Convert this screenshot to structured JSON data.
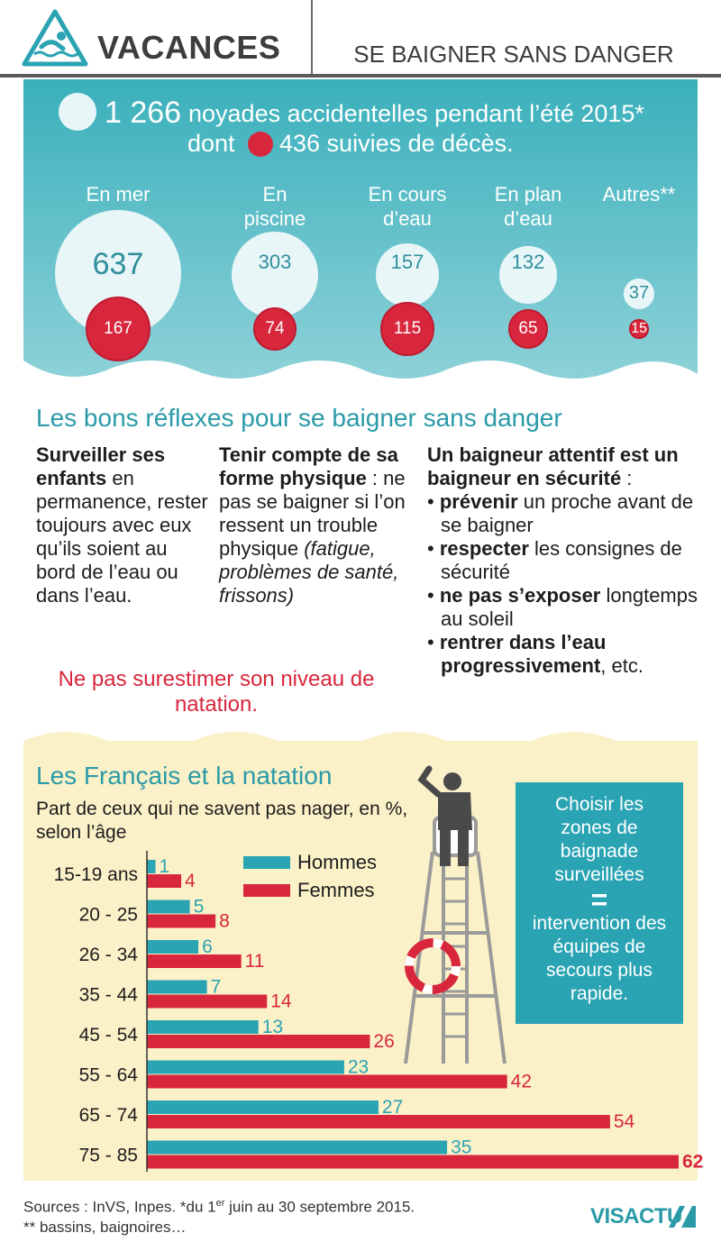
{
  "header": {
    "title": "VACANCES",
    "subtitle": "SE BAIGNER SANS DANGER"
  },
  "summary": {
    "total_number": "1 266",
    "total_text": "noyades accidentelles pendant l’été 2015*",
    "dont_label": "dont",
    "deaths_text": "436 suivies de décès."
  },
  "locations": [
    {
      "label": "En mer",
      "total": 637,
      "deaths": 167
    },
    {
      "label": "En\npiscine",
      "total": 303,
      "deaths": 74
    },
    {
      "label": "En cours\nd’eau",
      "total": 157,
      "deaths": 115
    },
    {
      "label": "En plan\nd’eau",
      "total": 132,
      "deaths": 65
    },
    {
      "label": "Autres**",
      "total": 37,
      "deaths": 15
    }
  ],
  "reflexes": {
    "title": "Les bons réflexes pour se baigner sans danger",
    "col1_bold": "Surveiller ses enfants",
    "col1_text": "en permanence, rester toujours avec eux qu’ils soient au bord de l’eau ou dans l’eau.",
    "col2_bold": "Tenir compte de sa forme physique",
    "col2_text": " : ne pas se baigner si l’on ressent un trouble physique ",
    "col2_italic": "(fatigue, problèmes de santé, frissons)",
    "col3_bold": "Un baigneur attentif est un baigneur en sécurité",
    "col3_colon": " :",
    "bullets": [
      {
        "bold": "prévenir",
        "text": " un proche avant de se baigner"
      },
      {
        "bold": "respecter",
        "text": " les consignes de sécurité"
      },
      {
        "bold": "ne pas s’exposer",
        "text": " longtemps au soleil"
      },
      {
        "bold": "rentrer dans l’eau progressivement",
        "text": ", etc."
      }
    ],
    "warning": "Ne pas surestimer son niveau de natation."
  },
  "natation": {
    "title": "Les Français et la natation",
    "subtitle": "Part de ceux qui ne savent pas nager, en %, selon l’âge"
  },
  "callout": {
    "line1": "Choisir les zones de baignade surveillées",
    "eq": "=",
    "line2": "intervention des équipes de secours plus rapide."
  },
  "footer": {
    "sources": "Sources : InVS, Inpes. *du 1er juin au 30 septembre 2015.",
    "sources_sup": "er",
    "note": "** bassins, baignoires…",
    "brand": "VISACTU"
  },
  "colors": {
    "teal": "#2aa3b3",
    "red": "#d8273c",
    "beige": "#fbf1c8",
    "bubble": "#e8f6f8"
  },
  "chart_data": {
    "type": "bar",
    "orientation": "horizontal",
    "categories": [
      "15-19 ans",
      "20 - 25",
      "26 - 34",
      "35 - 44",
      "45 - 54",
      "55 - 64",
      "65 - 74",
      "75 - 85"
    ],
    "series": [
      {
        "name": "Hommes",
        "color": "#2aa3b3",
        "values": [
          1,
          5,
          6,
          7,
          13,
          23,
          27,
          35
        ]
      },
      {
        "name": "Femmes",
        "color": "#d8273c",
        "values": [
          4,
          8,
          11,
          14,
          26,
          42,
          54,
          62
        ]
      }
    ],
    "title": "Les Français et la natation",
    "subtitle": "Part de ceux qui ne savent pas nager, en %, selon l’âge",
    "legend_position": "top",
    "grid": false,
    "xlim": [
      0,
      62
    ]
  }
}
